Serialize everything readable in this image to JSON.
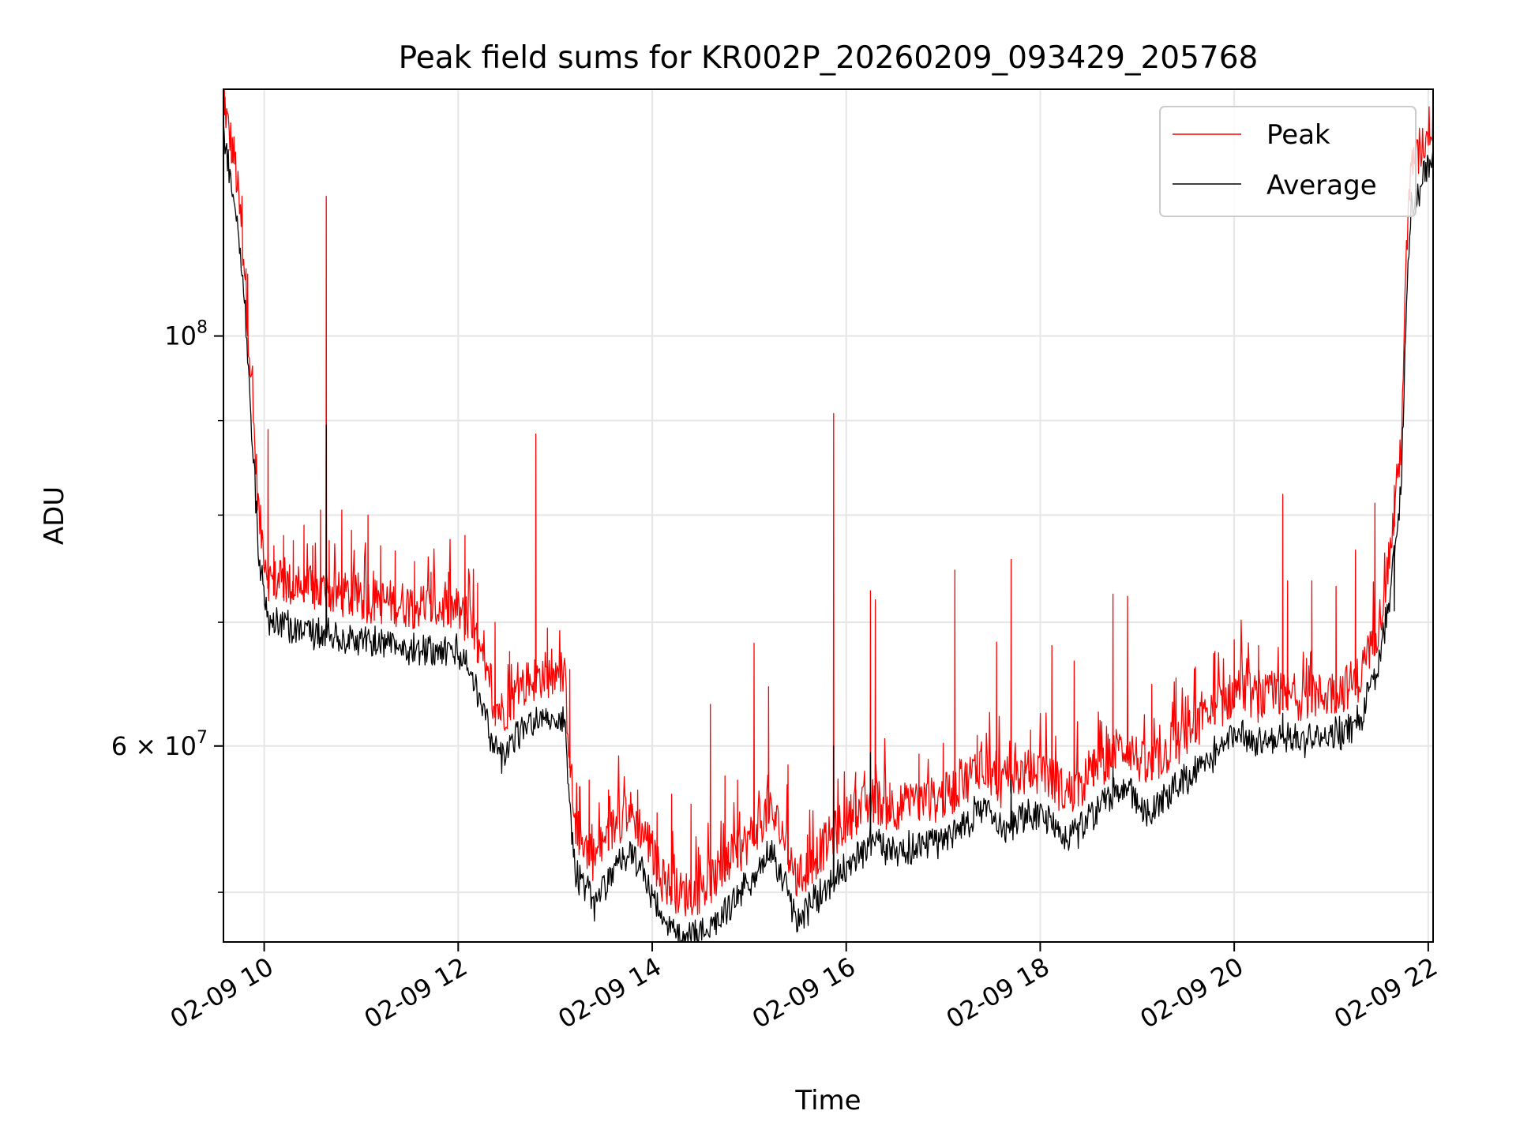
{
  "chart_data": {
    "type": "line",
    "title": "Peak field sums for KR002P_20260209_093429_205768",
    "xlabel": "Time",
    "ylabel": "ADU",
    "yscale": "log",
    "xlim": [
      9.58,
      22.05
    ],
    "ylim": [
      47000000,
      136000000
    ],
    "grid": true,
    "legend_position": "top-right",
    "x_ticks": [
      {
        "value": 10,
        "label": "02-09 10"
      },
      {
        "value": 12,
        "label": "02-09 12"
      },
      {
        "value": 14,
        "label": "02-09 14"
      },
      {
        "value": 16,
        "label": "02-09 16"
      },
      {
        "value": 18,
        "label": "02-09 18"
      },
      {
        "value": 20,
        "label": "02-09 20"
      },
      {
        "value": 22,
        "label": "02-09 22"
      }
    ],
    "y_major_ticks": [
      {
        "value": 100000000,
        "base": "10",
        "exp": "8"
      },
      {
        "value": 60000000,
        "coef": "6",
        "base": "10",
        "exp": "7"
      }
    ],
    "y_minor_ticks": [
      50000000,
      70000000,
      80000000,
      90000000
    ],
    "series": [
      {
        "name": "Peak",
        "color": "#ff0000",
        "baseline": [
          [
            9.58,
            133000000
          ],
          [
            9.62,
            128000000
          ],
          [
            9.7,
            122000000
          ],
          [
            9.8,
            107000000
          ],
          [
            9.88,
            90000000
          ],
          [
            9.95,
            78000000
          ],
          [
            10.05,
            72500000
          ],
          [
            10.3,
            72000000
          ],
          [
            10.6,
            71500000
          ],
          [
            11.0,
            70800000
          ],
          [
            11.5,
            70300000
          ],
          [
            12.0,
            69800000
          ],
          [
            12.15,
            68000000
          ],
          [
            12.35,
            62500000
          ],
          [
            12.45,
            61500000
          ],
          [
            12.7,
            63800000
          ],
          [
            12.9,
            64500000
          ],
          [
            13.1,
            64000000
          ],
          [
            13.2,
            53300000
          ],
          [
            13.4,
            51200000
          ],
          [
            13.6,
            53200000
          ],
          [
            13.75,
            54500000
          ],
          [
            13.95,
            52500000
          ],
          [
            14.1,
            50000000
          ],
          [
            14.3,
            49000000
          ],
          [
            14.5,
            49200000
          ],
          [
            14.8,
            51000000
          ],
          [
            15.0,
            52500000
          ],
          [
            15.2,
            54500000
          ],
          [
            15.35,
            52800000
          ],
          [
            15.5,
            49800000
          ],
          [
            15.7,
            51500000
          ],
          [
            16.0,
            53800000
          ],
          [
            16.3,
            55200000
          ],
          [
            16.4,
            54600000
          ],
          [
            16.7,
            54800000
          ],
          [
            17.0,
            55300000
          ],
          [
            17.2,
            56200000
          ],
          [
            17.4,
            57800000
          ],
          [
            17.6,
            56100000
          ],
          [
            17.8,
            57000000
          ],
          [
            18.05,
            57000000
          ],
          [
            18.25,
            55600000
          ],
          [
            18.4,
            56000000
          ],
          [
            18.7,
            58200000
          ],
          [
            18.9,
            59000000
          ],
          [
            19.1,
            57200000
          ],
          [
            19.3,
            58500000
          ],
          [
            19.6,
            60300000
          ],
          [
            19.85,
            62000000
          ],
          [
            20.05,
            63300000
          ],
          [
            20.25,
            62500000
          ],
          [
            20.5,
            62800000
          ],
          [
            20.8,
            62600000
          ],
          [
            21.1,
            63200000
          ],
          [
            21.3,
            64200000
          ],
          [
            21.5,
            69000000
          ],
          [
            21.62,
            76000000
          ],
          [
            21.72,
            86000000
          ],
          [
            21.78,
            110000000
          ],
          [
            21.82,
            121000000
          ],
          [
            21.88,
            122000000
          ],
          [
            21.95,
            125000000
          ],
          [
            22.05,
            129000000
          ]
        ],
        "spikes": [
          [
            9.59,
            136000000
          ],
          [
            9.67,
            125000000
          ],
          [
            9.83,
            108000000
          ],
          [
            10.04,
            89000000
          ],
          [
            10.1,
            77000000
          ],
          [
            10.2,
            78000000
          ],
          [
            10.3,
            77500000
          ],
          [
            10.41,
            79000000
          ],
          [
            10.5,
            77000000
          ],
          [
            10.58,
            80500000
          ],
          [
            10.64,
            119000000
          ],
          [
            10.67,
            77500000
          ],
          [
            10.8,
            80500000
          ],
          [
            10.9,
            78500000
          ],
          [
            11.07,
            80000000
          ],
          [
            11.2,
            77000000
          ],
          [
            11.35,
            76500000
          ],
          [
            11.55,
            75500000
          ],
          [
            11.72,
            74500000
          ],
          [
            11.9,
            74500000
          ],
          [
            12.07,
            78000000
          ],
          [
            12.2,
            73500000
          ],
          [
            12.38,
            70000000
          ],
          [
            12.53,
            67500000
          ],
          [
            12.8,
            88500000
          ],
          [
            12.92,
            69500000
          ],
          [
            13.15,
            66000000
          ],
          [
            13.25,
            57000000
          ],
          [
            13.35,
            57500000
          ],
          [
            13.55,
            56800000
          ],
          [
            13.85,
            56800000
          ],
          [
            14.05,
            55200000
          ],
          [
            14.2,
            56500000
          ],
          [
            14.4,
            55800000
          ],
          [
            14.6,
            63200000
          ],
          [
            14.75,
            57800000
          ],
          [
            14.88,
            57500000
          ],
          [
            15.05,
            68200000
          ],
          [
            15.2,
            64600000
          ],
          [
            15.4,
            58600000
          ],
          [
            15.6,
            53700000
          ],
          [
            15.87,
            90800000
          ],
          [
            16.1,
            56800000
          ],
          [
            16.25,
            72800000
          ],
          [
            16.3,
            72000000
          ],
          [
            16.45,
            57300000
          ],
          [
            16.75,
            59400000
          ],
          [
            17.0,
            60200000
          ],
          [
            17.12,
            74700000
          ],
          [
            17.35,
            60800000
          ],
          [
            17.55,
            68300000
          ],
          [
            17.7,
            75700000
          ],
          [
            17.9,
            61200000
          ],
          [
            18.12,
            68000000
          ],
          [
            18.35,
            66700000
          ],
          [
            18.55,
            59700000
          ],
          [
            18.75,
            72500000
          ],
          [
            18.9,
            72300000
          ],
          [
            19.15,
            64800000
          ],
          [
            19.4,
            65300000
          ],
          [
            19.6,
            66200000
          ],
          [
            19.8,
            67500000
          ],
          [
            20.0,
            68500000
          ],
          [
            20.25,
            68000000
          ],
          [
            20.5,
            82100000
          ],
          [
            20.55,
            73700000
          ],
          [
            20.8,
            73700000
          ],
          [
            21.05,
            73200000
          ],
          [
            21.25,
            76600000
          ],
          [
            21.45,
            81200000
          ],
          [
            21.65,
            83000000
          ]
        ]
      },
      {
        "name": "Average",
        "color": "#000000",
        "baseline": [
          [
            9.58,
            131000000
          ],
          [
            9.62,
            126000000
          ],
          [
            9.7,
            120000000
          ],
          [
            9.8,
            105000000
          ],
          [
            9.88,
            88500000
          ],
          [
            9.95,
            76500000
          ],
          [
            10.05,
            71000000
          ],
          [
            10.3,
            70300000
          ],
          [
            10.6,
            69800000
          ],
          [
            11.0,
            69100000
          ],
          [
            11.5,
            68700000
          ],
          [
            12.0,
            68200000
          ],
          [
            12.15,
            66400000
          ],
          [
            12.35,
            61000000
          ],
          [
            12.45,
            60000000
          ],
          [
            12.7,
            62200000
          ],
          [
            12.9,
            63000000
          ],
          [
            13.1,
            62500000
          ],
          [
            13.2,
            52000000
          ],
          [
            13.4,
            49900000
          ],
          [
            13.6,
            51900000
          ],
          [
            13.75,
            53200000
          ],
          [
            13.95,
            51200000
          ],
          [
            14.1,
            48800000
          ],
          [
            14.3,
            47800000
          ],
          [
            14.5,
            48000000
          ],
          [
            14.8,
            49700000
          ],
          [
            15.0,
            51200000
          ],
          [
            15.2,
            53200000
          ],
          [
            15.35,
            51500000
          ],
          [
            15.5,
            48600000
          ],
          [
            15.7,
            50200000
          ],
          [
            16.0,
            52500000
          ],
          [
            16.3,
            53900000
          ],
          [
            16.4,
            53300000
          ],
          [
            16.7,
            53500000
          ],
          [
            17.0,
            54000000
          ],
          [
            17.2,
            54900000
          ],
          [
            17.4,
            56400000
          ],
          [
            17.6,
            54800000
          ],
          [
            17.8,
            55600000
          ],
          [
            18.05,
            55600000
          ],
          [
            18.25,
            54300000
          ],
          [
            18.4,
            54700000
          ],
          [
            18.7,
            56800000
          ],
          [
            18.9,
            57600000
          ],
          [
            19.1,
            55800000
          ],
          [
            19.3,
            57100000
          ],
          [
            19.6,
            58900000
          ],
          [
            19.85,
            60500000
          ],
          [
            20.05,
            61800000
          ],
          [
            20.25,
            61000000
          ],
          [
            20.5,
            61300000
          ],
          [
            20.8,
            61100000
          ],
          [
            21.1,
            61700000
          ],
          [
            21.3,
            62700000
          ],
          [
            21.5,
            67400000
          ],
          [
            21.62,
            74200000
          ],
          [
            21.72,
            84000000
          ],
          [
            21.78,
            108000000
          ],
          [
            21.82,
            119000000
          ],
          [
            21.88,
            120000000
          ],
          [
            21.95,
            123000000
          ],
          [
            22.05,
            127000000
          ]
        ],
        "spikes": [
          [
            10.64,
            89500000
          ],
          [
            15.87,
            60000000
          ],
          [
            16.25,
            59500000
          ],
          [
            17.7,
            57500000
          ],
          [
            18.75,
            58500000
          ],
          [
            20.5,
            62500000
          ],
          [
            21.65,
            71000000
          ]
        ]
      }
    ]
  }
}
